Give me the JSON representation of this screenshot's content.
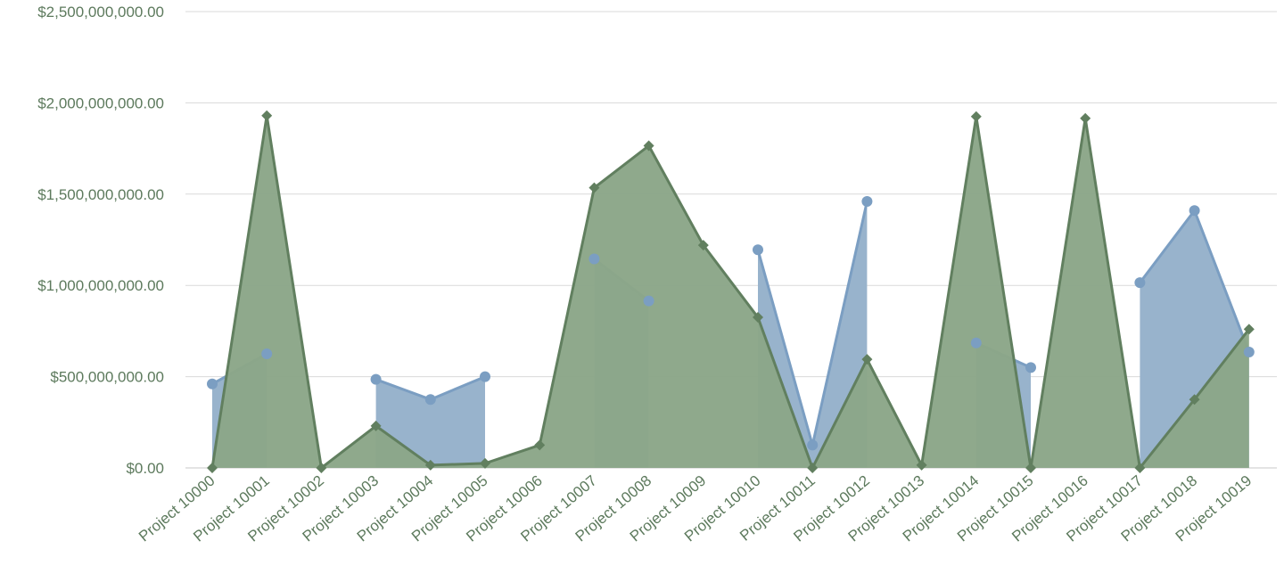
{
  "chart_data": {
    "type": "area",
    "categories": [
      "Project 10000",
      "Project 10001",
      "Project 10002",
      "Project 10003",
      "Project 10004",
      "Project 10005",
      "Project 10006",
      "Project 10007",
      "Project 10008",
      "Project 10009",
      "Project 10010",
      "Project 10011",
      "Project 10012",
      "Project 10013",
      "Project 10014",
      "Project 10015",
      "Project 10016",
      "Project 10017",
      "Project 10018",
      "Project 10019"
    ],
    "ylim": [
      0,
      2500000000
    ],
    "y_ticks": [
      0,
      500000000,
      1000000000,
      1500000000,
      2000000000,
      2500000000
    ],
    "y_tick_labels": [
      "$0.00",
      "$500,000,000.00",
      "$1,000,000,000.00",
      "$1,500,000,000.00",
      "$2,000,000,000.00",
      "$2,500,000,000.00"
    ],
    "grid": true,
    "series": [
      {
        "color": "#7b9ec2",
        "fill": "#98b3cc",
        "marker": "circle",
        "values": [
          460000000,
          625000000,
          null,
          485000000,
          375000000,
          500000000,
          null,
          1145000000,
          915000000,
          null,
          1195000000,
          125000000,
          1460000000,
          null,
          685000000,
          550000000,
          null,
          1015000000,
          1410000000,
          635000000
        ]
      },
      {
        "color": "#617f5f",
        "fill": "#8ba688",
        "marker": "diamond",
        "values": [
          0,
          1930000000,
          0,
          230000000,
          15000000,
          25000000,
          125000000,
          1535000000,
          1765000000,
          1220000000,
          825000000,
          0,
          595000000,
          15000000,
          1925000000,
          0,
          1915000000,
          0,
          375000000,
          760000000
        ]
      }
    ]
  }
}
